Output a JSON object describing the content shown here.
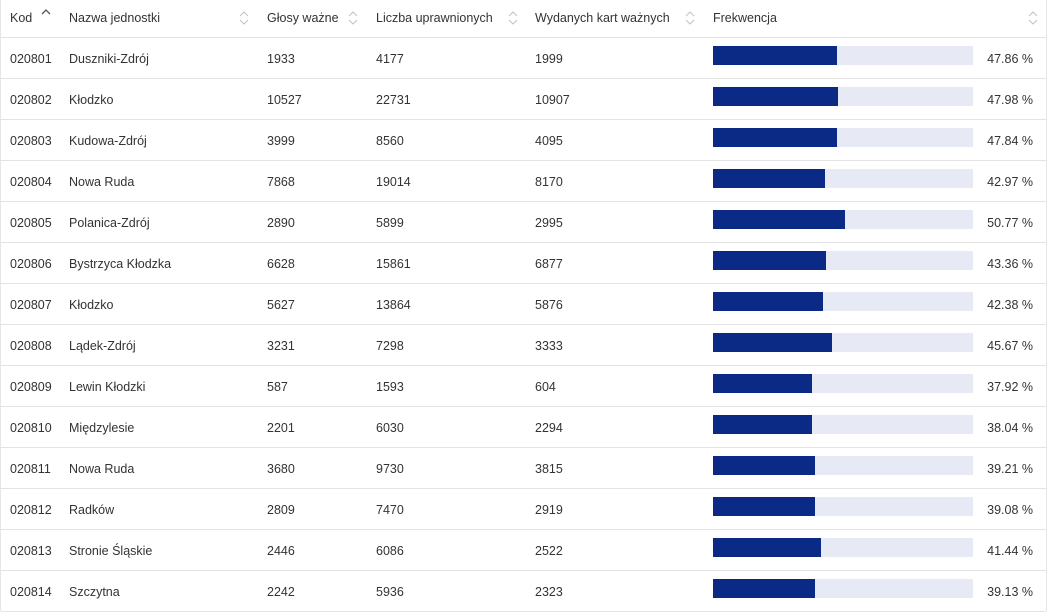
{
  "colors": {
    "bar_fill": "#0b2a86",
    "bar_track": "#e7eaf5",
    "border": "#e3e3e3",
    "text": "#333333"
  },
  "header": {
    "kod": "Kod",
    "nazwa": "Nazwa jednostki",
    "glosy": "Głosy ważne",
    "liczba": "Liczba uprawnionych",
    "wydanych": "Wydanych kart ważnych",
    "frekwencja": "Frekwencja",
    "active_sort": {
      "column": "Kod",
      "direction": "ascending"
    },
    "sort_icons": [
      "sort-asc-icon",
      "sort-both-icon"
    ]
  },
  "rows": [
    {
      "kod": "020801",
      "nazwa": "Duszniki-Zdrój",
      "glosy": "1933",
      "liczba": "4177",
      "wydanych": "1999",
      "frekwencja": 47.86,
      "frekwencja_label": "47.86 %"
    },
    {
      "kod": "020802",
      "nazwa": "Kłodzko",
      "glosy": "10527",
      "liczba": "22731",
      "wydanych": "10907",
      "frekwencja": 47.98,
      "frekwencja_label": "47.98 %"
    },
    {
      "kod": "020803",
      "nazwa": "Kudowa-Zdrój",
      "glosy": "3999",
      "liczba": "8560",
      "wydanych": "4095",
      "frekwencja": 47.84,
      "frekwencja_label": "47.84 %"
    },
    {
      "kod": "020804",
      "nazwa": "Nowa Ruda",
      "glosy": "7868",
      "liczba": "19014",
      "wydanych": "8170",
      "frekwencja": 42.97,
      "frekwencja_label": "42.97 %"
    },
    {
      "kod": "020805",
      "nazwa": "Polanica-Zdrój",
      "glosy": "2890",
      "liczba": "5899",
      "wydanych": "2995",
      "frekwencja": 50.77,
      "frekwencja_label": "50.77 %"
    },
    {
      "kod": "020806",
      "nazwa": "Bystrzyca Kłodzka",
      "glosy": "6628",
      "liczba": "15861",
      "wydanych": "6877",
      "frekwencja": 43.36,
      "frekwencja_label": "43.36 %"
    },
    {
      "kod": "020807",
      "nazwa": "Kłodzko",
      "glosy": "5627",
      "liczba": "13864",
      "wydanych": "5876",
      "frekwencja": 42.38,
      "frekwencja_label": "42.38 %"
    },
    {
      "kod": "020808",
      "nazwa": "Lądek-Zdrój",
      "glosy": "3231",
      "liczba": "7298",
      "wydanych": "3333",
      "frekwencja": 45.67,
      "frekwencja_label": "45.67 %"
    },
    {
      "kod": "020809",
      "nazwa": "Lewin Kłodzki",
      "glosy": "587",
      "liczba": "1593",
      "wydanych": "604",
      "frekwencja": 37.92,
      "frekwencja_label": "37.92 %"
    },
    {
      "kod": "020810",
      "nazwa": "Międzylesie",
      "glosy": "2201",
      "liczba": "6030",
      "wydanych": "2294",
      "frekwencja": 38.04,
      "frekwencja_label": "38.04 %"
    },
    {
      "kod": "020811",
      "nazwa": "Nowa Ruda",
      "glosy": "3680",
      "liczba": "9730",
      "wydanych": "3815",
      "frekwencja": 39.21,
      "frekwencja_label": "39.21 %"
    },
    {
      "kod": "020812",
      "nazwa": "Radków",
      "glosy": "2809",
      "liczba": "7470",
      "wydanych": "2919",
      "frekwencja": 39.08,
      "frekwencja_label": "39.08 %"
    },
    {
      "kod": "020813",
      "nazwa": "Stronie Śląskie",
      "glosy": "2446",
      "liczba": "6086",
      "wydanych": "2522",
      "frekwencja": 41.44,
      "frekwencja_label": "41.44 %"
    },
    {
      "kod": "020814",
      "nazwa": "Szczytna",
      "glosy": "2242",
      "liczba": "5936",
      "wydanych": "2323",
      "frekwencja": 39.13,
      "frekwencja_label": "39.13 %"
    }
  ]
}
